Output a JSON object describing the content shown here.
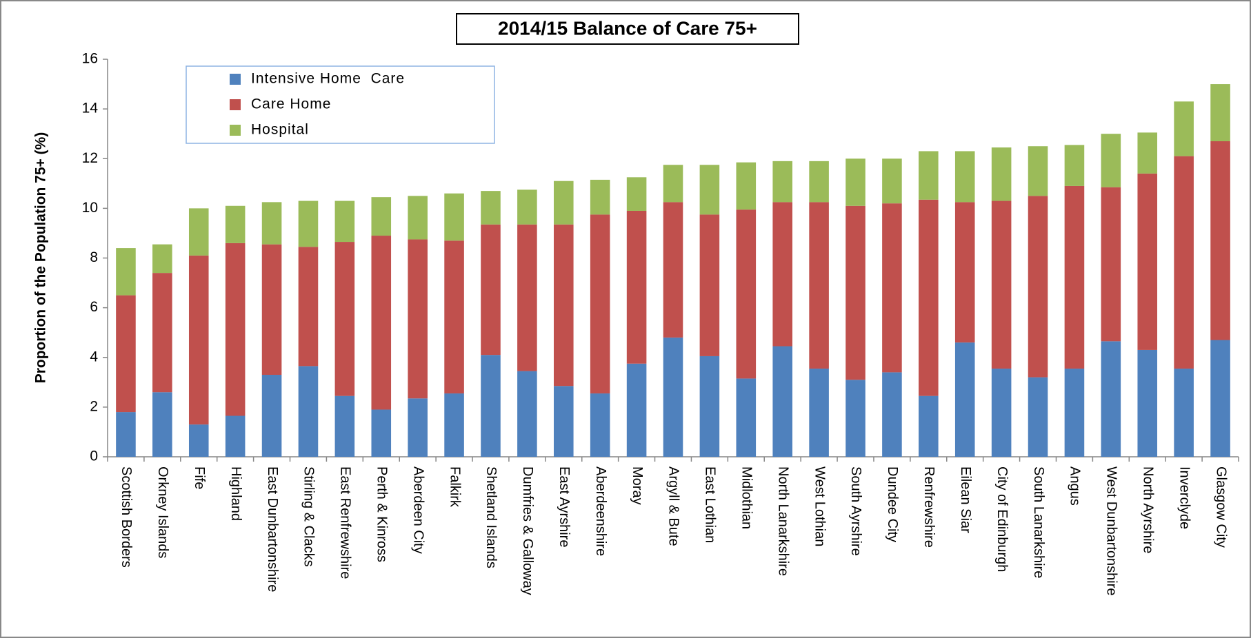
{
  "chart_data": {
    "type": "stacked_bar",
    "title": "2014/15 Balance of Care 75+",
    "y_label": "Proportion of the Population  75+ (%)",
    "categories": [
      "Scottish Borders",
      "Orkney Islands",
      "Fife",
      "Highland",
      "East Dunbartonshire",
      "Stirling & Clacks",
      "East Renfrewshire",
      "Perth & Kinross",
      "Aberdeen City",
      "Falkirk",
      "Shetland Islands",
      "Dumfries & Galloway",
      "East Ayrshire",
      "Aberdeenshire",
      "Moray",
      "Argyll & Bute",
      "East Lothian",
      "Midlothian",
      "North Lanarkshire",
      "West Lothian",
      "South Ayrshire",
      "Dundee City",
      "Renfrewshire",
      "Eilean Siar",
      "City of Edinburgh",
      "South Lanarkshire",
      "Angus",
      "West Dunbartonshire",
      "North Ayrshire",
      "Inverclyde",
      "Glasgow City"
    ],
    "series": [
      {
        "name": "Intensive Home  Care",
        "color": "#4f81bd",
        "values": [
          1.8,
          2.6,
          1.3,
          1.65,
          3.3,
          3.65,
          2.45,
          1.9,
          2.35,
          2.55,
          4.1,
          3.45,
          2.85,
          2.55,
          3.75,
          4.8,
          4.05,
          3.15,
          4.45,
          3.55,
          3.1,
          3.4,
          2.45,
          4.6,
          3.55,
          3.2,
          3.55,
          4.65,
          4.3,
          3.55,
          4.7
        ]
      },
      {
        "name": "Care Home",
        "color": "#c0504d",
        "values": [
          4.7,
          4.8,
          6.8,
          6.95,
          5.25,
          4.8,
          6.2,
          7.0,
          6.4,
          6.15,
          5.25,
          5.9,
          6.5,
          7.2,
          6.15,
          5.45,
          5.7,
          6.8,
          5.8,
          6.7,
          7.0,
          6.8,
          7.9,
          5.65,
          6.75,
          7.3,
          7.35,
          6.2,
          7.1,
          8.55,
          8.0
        ]
      },
      {
        "name": "Hospital",
        "color": "#9bbb59",
        "values": [
          1.9,
          1.15,
          1.9,
          1.5,
          1.7,
          1.85,
          1.65,
          1.55,
          1.75,
          1.9,
          1.35,
          1.4,
          1.75,
          1.4,
          1.35,
          1.5,
          2.0,
          1.9,
          1.65,
          1.65,
          1.9,
          1.8,
          1.95,
          2.05,
          2.15,
          2.0,
          1.65,
          2.15,
          1.65,
          2.2,
          2.3
        ]
      }
    ],
    "ylim": [
      0,
      16
    ],
    "yticks": [
      0,
      2,
      4,
      6,
      8,
      10,
      12,
      14,
      16
    ],
    "grid": false,
    "legend": "upper left"
  }
}
